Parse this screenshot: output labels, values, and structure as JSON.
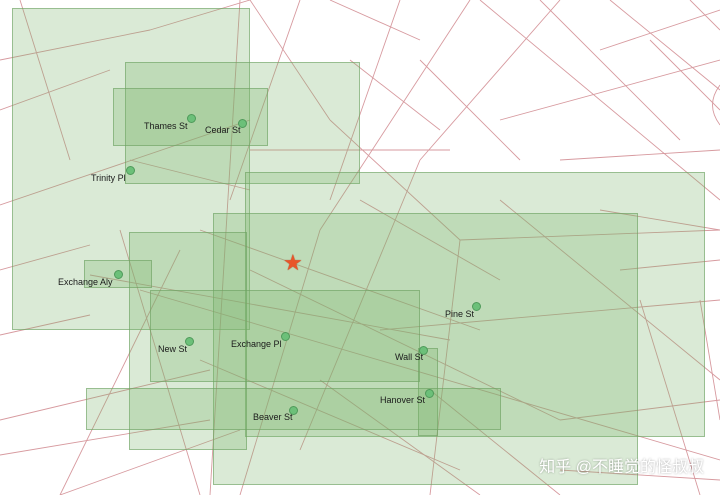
{
  "map": {
    "colors": {
      "road": "#d79a9f",
      "box_fill": "#7ab26a",
      "poi": "#6cc079",
      "query_point": "#e8552a"
    },
    "query_point_icon": "star-icon",
    "pois": [
      {
        "id": "thames-st",
        "label": "Thames St"
      },
      {
        "id": "cedar-st",
        "label": "Cedar St"
      },
      {
        "id": "trinity-pl",
        "label": "Trinity Pl"
      },
      {
        "id": "exchange-aly",
        "label": "Exchange Aly"
      },
      {
        "id": "pine-st",
        "label": "Pine St"
      },
      {
        "id": "new-st",
        "label": "New St"
      },
      {
        "id": "exchange-pl",
        "label": "Exchange Pl"
      },
      {
        "id": "wall-st",
        "label": "Wall St"
      },
      {
        "id": "hanover-st",
        "label": "Hanover St"
      },
      {
        "id": "beaver-st",
        "label": "Beaver St"
      }
    ]
  },
  "watermark": "知乎 @不睡觉的怪叔叔"
}
